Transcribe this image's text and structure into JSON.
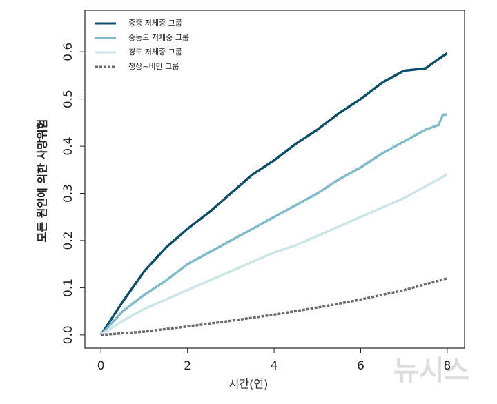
{
  "chart_data": {
    "type": "line",
    "ylabel": "모든 원인에 의한 사망위험",
    "xlabel": "시간(연)",
    "watermark": "뉴시스",
    "xlim": [
      -0.37,
      8.4
    ],
    "xticks": [
      0,
      2,
      4,
      6,
      8
    ],
    "ylim": [
      -0.028,
      0.688
    ],
    "yticks": [
      {
        "value": 0,
        "label": "0.0"
      },
      0.1,
      0.2,
      0.3,
      0.4,
      0.5,
      0.6
    ],
    "legend": "upper-left",
    "series": [
      {
        "name": "중증 저체중 그룹",
        "color": "#0d4f6b",
        "style": "solid",
        "x": [
          0,
          0.5,
          1,
          1.5,
          2,
          2.5,
          3,
          3.5,
          4,
          4.5,
          5,
          5.5,
          6,
          6.5,
          7,
          7.5,
          7.8,
          8
        ],
        "values": [
          0,
          0.07,
          0.135,
          0.185,
          0.225,
          0.26,
          0.3,
          0.34,
          0.37,
          0.405,
          0.435,
          0.47,
          0.5,
          0.535,
          0.56,
          0.565,
          0.585,
          0.597
        ]
      },
      {
        "name": "중등도 저체중 그룹",
        "color": "#7fbccb",
        "style": "solid",
        "x": [
          0,
          0.5,
          1,
          1.5,
          2,
          2.5,
          3,
          3.5,
          4,
          4.5,
          5,
          5.5,
          6,
          6.5,
          7,
          7.5,
          7.8,
          7.9,
          8
        ],
        "values": [
          0,
          0.05,
          0.085,
          0.115,
          0.15,
          0.175,
          0.2,
          0.225,
          0.25,
          0.275,
          0.3,
          0.33,
          0.355,
          0.385,
          0.41,
          0.435,
          0.445,
          0.467,
          0.467
        ]
      },
      {
        "name": "경도 저체중 그룹",
        "color": "#cce5e6",
        "style": "solid",
        "x": [
          0,
          0.5,
          1,
          1.5,
          2,
          2.5,
          3,
          3.5,
          4,
          4.5,
          5,
          5.5,
          6,
          6.5,
          7,
          7.5,
          8
        ],
        "values": [
          0,
          0.03,
          0.055,
          0.075,
          0.095,
          0.115,
          0.135,
          0.155,
          0.175,
          0.19,
          0.21,
          0.23,
          0.25,
          0.27,
          0.29,
          0.315,
          0.34
        ]
      },
      {
        "name": "정상~비만 그룹",
        "color": "#6b6b6b",
        "style": "dashed",
        "x": [
          0,
          1,
          2,
          3,
          4,
          5,
          6,
          7,
          8
        ],
        "values": [
          0,
          0.007,
          0.018,
          0.03,
          0.043,
          0.058,
          0.075,
          0.095,
          0.12
        ]
      }
    ]
  }
}
